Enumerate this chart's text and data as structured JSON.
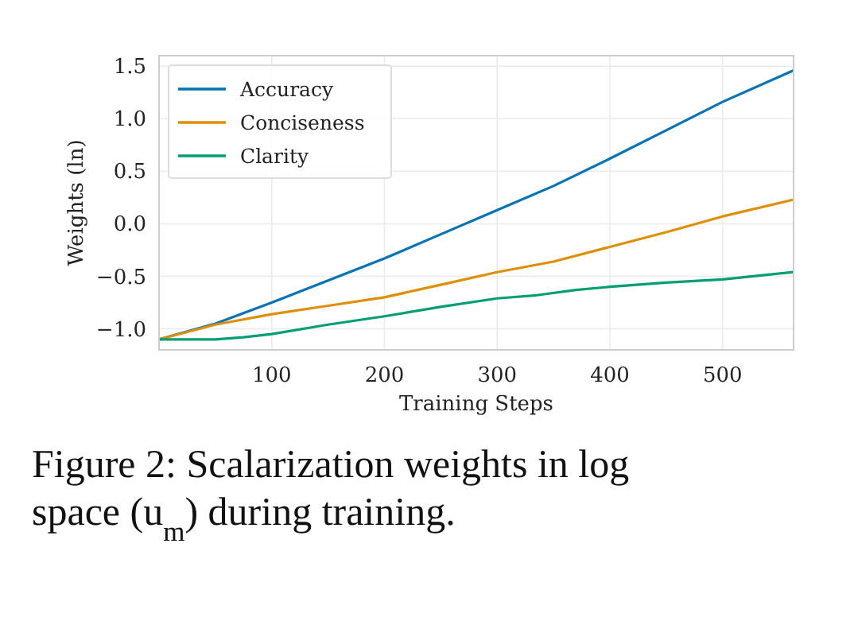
{
  "chart_data": {
    "type": "line",
    "xlabel": "Training Steps",
    "ylabel": "Weights (ln)",
    "xlim": [
      0,
      563
    ],
    "ylim": [
      -1.2,
      1.6
    ],
    "xticks": [
      100,
      200,
      300,
      400,
      500
    ],
    "yticks": [
      {
        "value": -1,
        "label": "−1.0"
      },
      {
        "value": -0.5,
        "label": "−0.5"
      },
      {
        "value": 0,
        "label": "0.0"
      },
      0.5,
      {
        "value": 1,
        "label": "1.0"
      },
      1.5
    ],
    "grid": true,
    "legend": "top left",
    "x": [
      0,
      50,
      100,
      150,
      200,
      250,
      300,
      350,
      400,
      450,
      500,
      563
    ],
    "series": [
      {
        "name": "Accuracy",
        "color": "#0173b2",
        "values": [
          -1.1,
          -0.95,
          -0.75,
          -0.54,
          -0.33,
          -0.1,
          0.13,
          0.36,
          0.62,
          0.89,
          1.16,
          1.46
        ]
      },
      {
        "name": "Conciseness",
        "color": "#de8f05",
        "values": [
          -1.1,
          -0.96,
          -0.86,
          -0.78,
          -0.7,
          -0.58,
          -0.46,
          -0.36,
          -0.22,
          -0.08,
          0.07,
          0.23
        ]
      },
      {
        "name": "Clarity",
        "color": "#029e73",
        "x": [
          0,
          50,
          75,
          100,
          150,
          200,
          250,
          300,
          335,
          370,
          400,
          450,
          500,
          563
        ],
        "values": [
          -1.1,
          -1.1,
          -1.08,
          -1.05,
          -0.96,
          -0.88,
          -0.79,
          -0.71,
          -0.68,
          -0.63,
          -0.6,
          -0.56,
          -0.53,
          -0.46
        ]
      }
    ],
    "annotations": [
      "Figure 2: Scalarization weights in log space (u$_{m}$) during training."
    ]
  }
}
